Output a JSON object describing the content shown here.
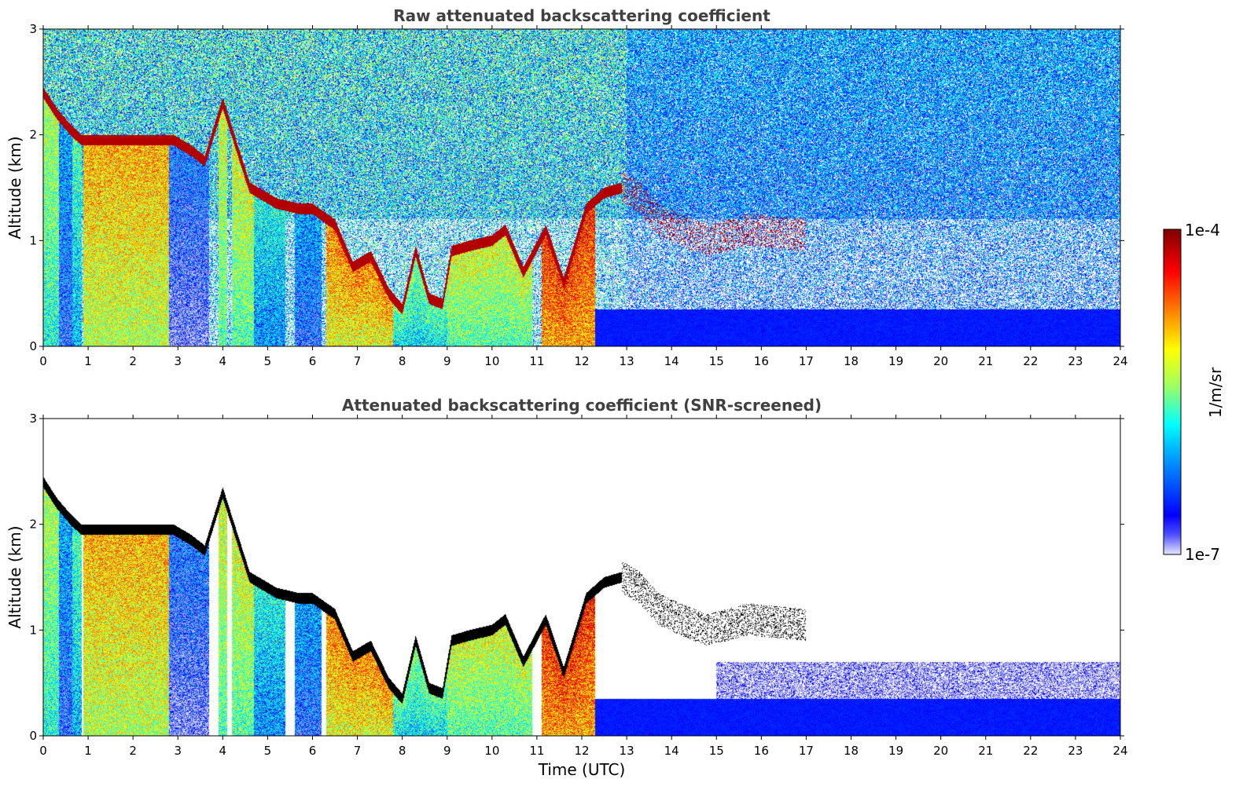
{
  "chart_data": [
    {
      "type": "heatmap",
      "title": "Raw attenuated backscattering coefficient",
      "xlabel": "",
      "ylabel": "Altitude (km)",
      "xlim": [
        0,
        24
      ],
      "ylim": [
        0,
        3
      ],
      "x_ticks": [
        "0",
        "1",
        "2",
        "3",
        "4",
        "5",
        "6",
        "7",
        "8",
        "9",
        "10",
        "11",
        "12",
        "13",
        "14",
        "15",
        "16",
        "17",
        "18",
        "19",
        "20",
        "21",
        "22",
        "23",
        "24"
      ],
      "y_ticks": [
        "0",
        "1",
        "2",
        "3"
      ],
      "screened": false,
      "cloud_base_layer": [
        {
          "t": 0.0,
          "z": 2.4
        },
        {
          "t": 0.3,
          "z": 2.2
        },
        {
          "t": 0.6,
          "z": 2.05
        },
        {
          "t": 0.85,
          "z": 1.95
        },
        {
          "t": 2.9,
          "z": 1.95
        },
        {
          "t": 3.3,
          "z": 1.85
        },
        {
          "t": 3.6,
          "z": 1.75
        },
        {
          "t": 4.0,
          "z": 2.3
        },
        {
          "t": 4.6,
          "z": 1.5
        },
        {
          "t": 5.2,
          "z": 1.35
        },
        {
          "t": 5.7,
          "z": 1.3
        },
        {
          "t": 6.0,
          "z": 1.3
        },
        {
          "t": 6.5,
          "z": 1.15
        },
        {
          "t": 6.9,
          "z": 0.75
        },
        {
          "t": 7.3,
          "z": 0.85
        },
        {
          "t": 7.7,
          "z": 0.5
        },
        {
          "t": 8.0,
          "z": 0.35
        },
        {
          "t": 8.3,
          "z": 0.9
        },
        {
          "t": 8.6,
          "z": 0.45
        },
        {
          "t": 8.9,
          "z": 0.4
        },
        {
          "t": 9.1,
          "z": 0.9
        },
        {
          "t": 9.5,
          "z": 0.95
        },
        {
          "t": 10.0,
          "z": 1.0
        },
        {
          "t": 10.3,
          "z": 1.1
        },
        {
          "t": 10.7,
          "z": 0.7
        },
        {
          "t": 11.2,
          "z": 1.1
        },
        {
          "t": 11.6,
          "z": 0.6
        },
        {
          "t": 12.1,
          "z": 1.3
        },
        {
          "t": 12.5,
          "z": 1.45
        },
        {
          "t": 12.9,
          "z": 1.5
        },
        {
          "t": 13.3,
          "z": 1.4
        },
        {
          "t": 13.7,
          "z": 1.2
        },
        {
          "t": 14.2,
          "z": 1.1
        },
        {
          "t": 14.8,
          "z": 1.0
        },
        {
          "t": 15.7,
          "z": 1.1
        },
        {
          "t": 17.0,
          "z": 1.05
        }
      ]
    },
    {
      "type": "heatmap",
      "title": "Attenuated backscattering coefficient (SNR-screened)",
      "xlabel": "Time (UTC)",
      "ylabel": "Altitude (km)",
      "xlim": [
        0,
        24
      ],
      "ylim": [
        0,
        3
      ],
      "x_ticks": [
        "0",
        "1",
        "2",
        "3",
        "4",
        "5",
        "6",
        "7",
        "8",
        "9",
        "10",
        "11",
        "12",
        "13",
        "14",
        "15",
        "16",
        "17",
        "18",
        "19",
        "20",
        "21",
        "22",
        "23",
        "24"
      ],
      "y_ticks": [
        "0",
        "1",
        "2",
        "3"
      ],
      "screened": true
    }
  ],
  "colorbar": {
    "label": "1/m/sr",
    "max_label": "1e-4",
    "min_label": "1e-7",
    "colormap": "jet",
    "colors": [
      "#e8e8ff",
      "#0000ff",
      "#00a0ff",
      "#00ffff",
      "#a0ff60",
      "#ffff00",
      "#ff8000",
      "#ff0000",
      "#800000"
    ]
  }
}
